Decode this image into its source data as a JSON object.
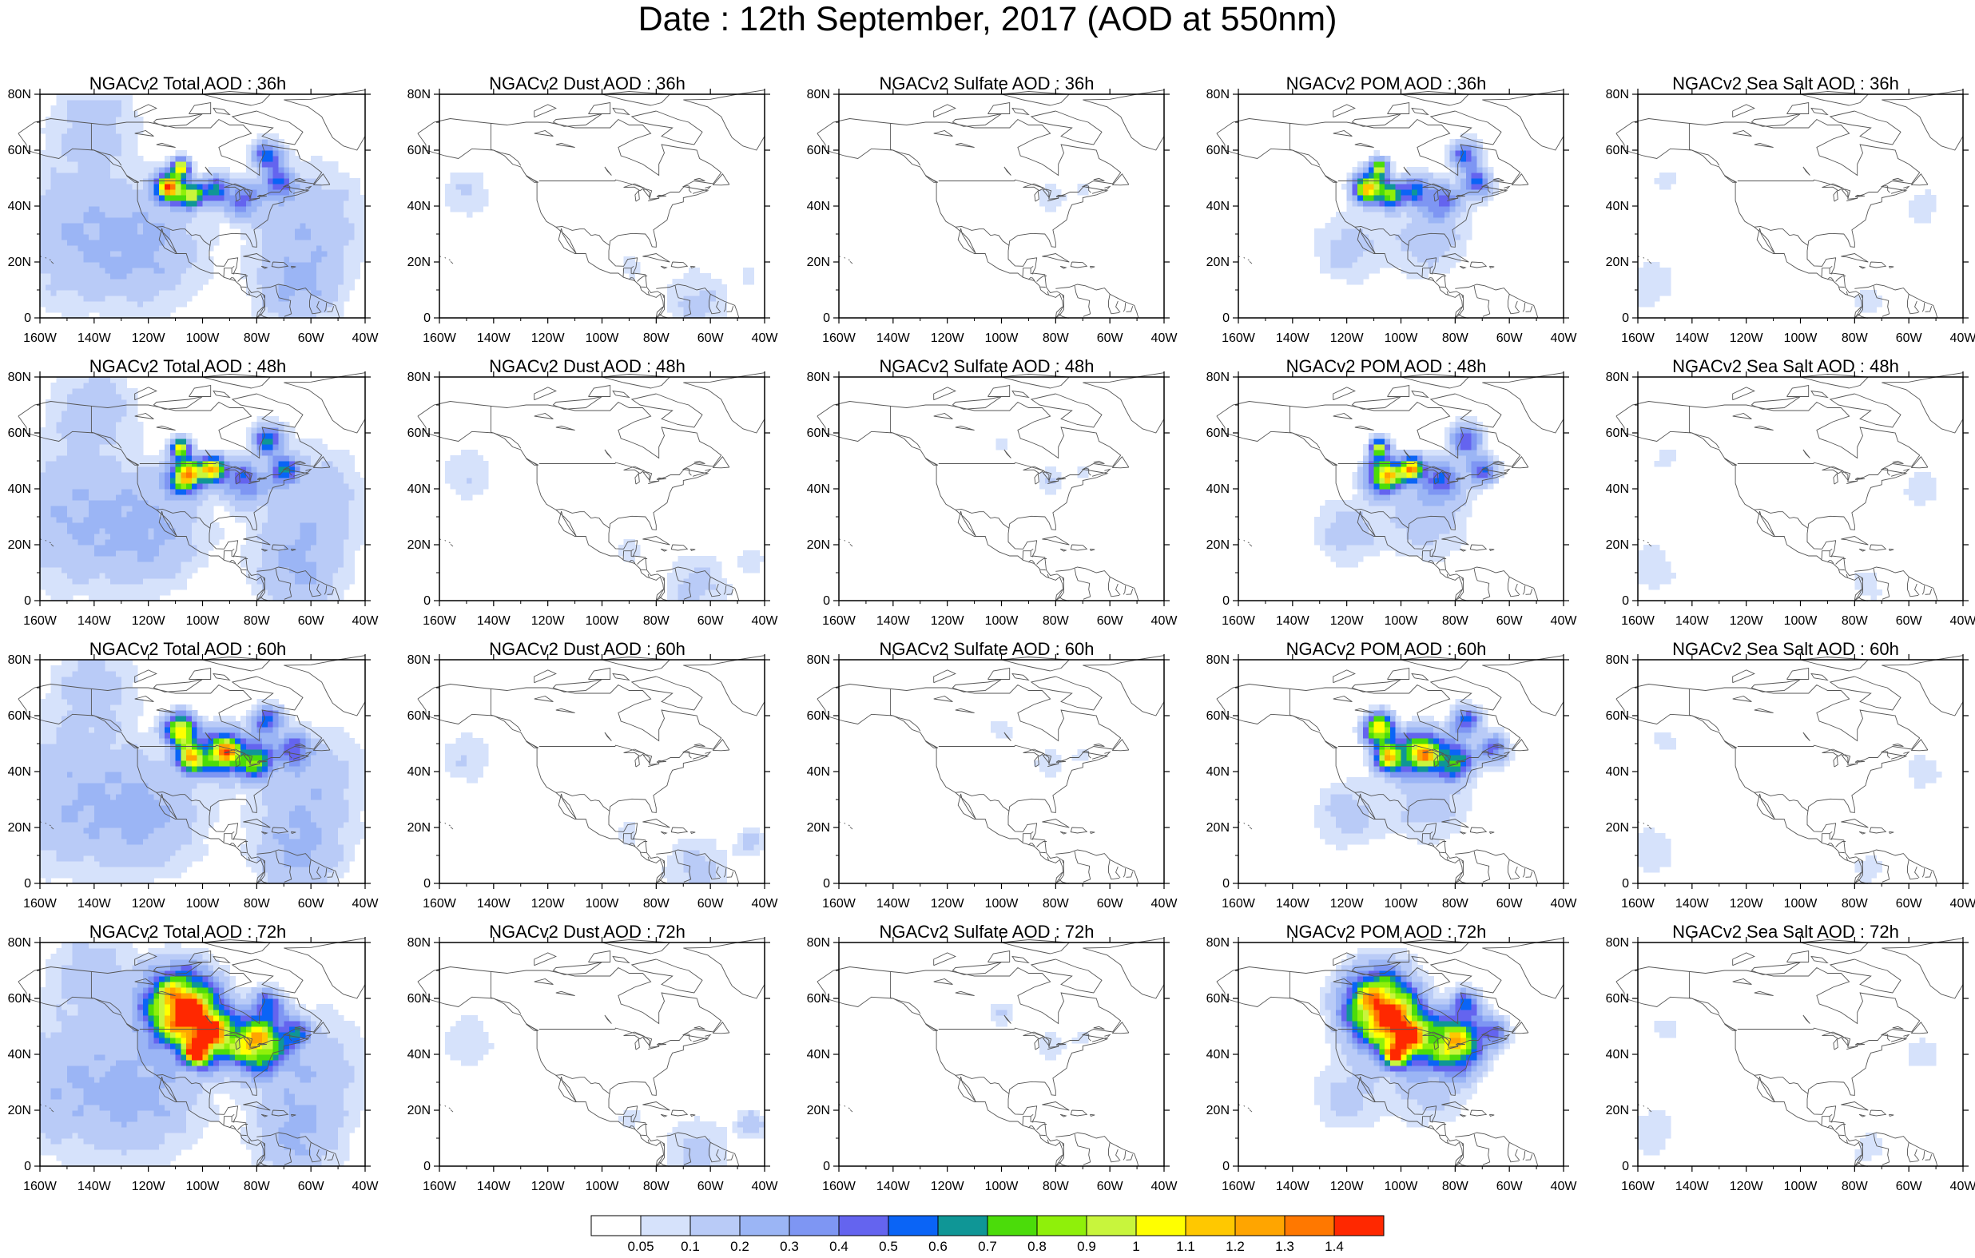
{
  "title": "Date : 12th September, 2017 (AOD at 550nm)",
  "x_tick_labels": [
    "160W",
    "140W",
    "120W",
    "100W",
    "80W",
    "60W",
    "40W"
  ],
  "y_tick_labels": [
    "0",
    "20N",
    "40N",
    "60N",
    "80N"
  ],
  "map_extent": {
    "lon": [
      -160,
      -40
    ],
    "lat": [
      0,
      80
    ]
  },
  "colorbar": {
    "labels": [
      "0.05",
      "0.1",
      "0.2",
      "0.3",
      "0.4",
      "0.5",
      "0.6",
      "0.7",
      "0.8",
      "0.9",
      "1",
      "1.1",
      "1.2",
      "1.3",
      "1.4"
    ],
    "colors": [
      "#ffffff",
      "#d6e2fb",
      "#b9cbf7",
      "#9bb5f5",
      "#7e96f3",
      "#6464ef",
      "#0a64f6",
      "#0f9696",
      "#4bdc0a",
      "#8ff00a",
      "#c8f53c",
      "#ffff00",
      "#ffc800",
      "#ffa500",
      "#ff7800",
      "#ff2800"
    ]
  },
  "panels": [
    {
      "title": "NGACv2 Total AOD : 36h",
      "species": "total",
      "hour": 36
    },
    {
      "title": "NGACv2 Dust AOD : 36h",
      "species": "dust",
      "hour": 36
    },
    {
      "title": "NGACv2 Sulfate AOD : 36h",
      "species": "sulfate",
      "hour": 36
    },
    {
      "title": "NGACv2 POM AOD : 36h",
      "species": "pom",
      "hour": 36
    },
    {
      "title": "NGACv2 Sea Salt AOD : 36h",
      "species": "seasalt",
      "hour": 36
    },
    {
      "title": "NGACv2 Total AOD : 48h",
      "species": "total",
      "hour": 48
    },
    {
      "title": "NGACv2 Dust AOD : 48h",
      "species": "dust",
      "hour": 48
    },
    {
      "title": "NGACv2 Sulfate AOD : 48h",
      "species": "sulfate",
      "hour": 48
    },
    {
      "title": "NGACv2 POM AOD : 48h",
      "species": "pom",
      "hour": 48
    },
    {
      "title": "NGACv2 Sea Salt AOD : 48h",
      "species": "seasalt",
      "hour": 48
    },
    {
      "title": "NGACv2 Total AOD : 60h",
      "species": "total",
      "hour": 60
    },
    {
      "title": "NGACv2 Dust AOD : 60h",
      "species": "dust",
      "hour": 60
    },
    {
      "title": "NGACv2 Sulfate AOD : 60h",
      "species": "sulfate",
      "hour": 60
    },
    {
      "title": "NGACv2 POM AOD : 60h",
      "species": "pom",
      "hour": 60
    },
    {
      "title": "NGACv2 Sea Salt AOD : 60h",
      "species": "seasalt",
      "hour": 60
    },
    {
      "title": "NGACv2 Total AOD : 72h",
      "species": "total",
      "hour": 72
    },
    {
      "title": "NGACv2 Dust AOD : 72h",
      "species": "dust",
      "hour": 72
    },
    {
      "title": "NGACv2 Sulfate AOD : 72h",
      "species": "sulfate",
      "hour": 72
    },
    {
      "title": "NGACv2 POM AOD : 72h",
      "species": "pom",
      "hour": 72
    },
    {
      "title": "NGACv2 Sea Salt  AOD : 72h",
      "species": "seasalt",
      "hour": 72
    }
  ]
}
